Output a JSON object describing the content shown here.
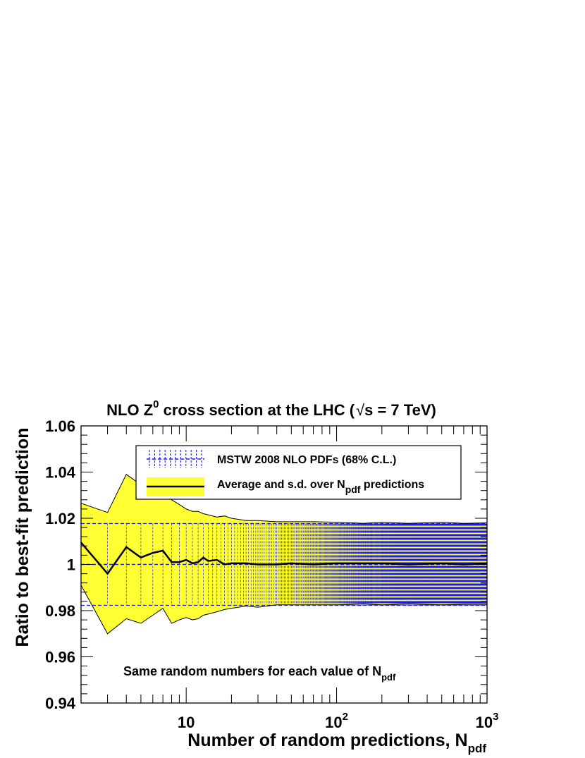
{
  "chart_data": {
    "type": "line",
    "title": {
      "part1": "NLO Z",
      "sup": "0",
      "part2": " cross section at the LHC (",
      "sqrt_var": "s",
      "part3": " = 7 TeV)"
    },
    "xlabel": {
      "main": "Number of random predictions, N",
      "sub": "pdf"
    },
    "ylabel": "Ratio to best-fit prediction",
    "x_scale": "log",
    "xlim": [
      2,
      1000
    ],
    "ylim": [
      0.94,
      1.06
    ],
    "x_tick_labels": [
      {
        "x": 10,
        "base": "10",
        "exp": ""
      },
      {
        "x": 100,
        "base": "10",
        "exp": "2"
      },
      {
        "x": 1000,
        "base": "10",
        "exp": "3"
      }
    ],
    "y_tick_labels": [
      {
        "y": 0.94,
        "label": "0.94"
      },
      {
        "y": 0.96,
        "label": "0.96"
      },
      {
        "y": 0.98,
        "label": "0.98"
      },
      {
        "y": 1.0,
        "label": "1"
      },
      {
        "y": 1.02,
        "label": "1.02"
      },
      {
        "y": 1.04,
        "label": "1.04"
      },
      {
        "y": 1.06,
        "label": "1.06"
      }
    ],
    "grid": false,
    "legend": {
      "placement": "top-center",
      "entries": [
        {
          "text": "MSTW 2008 NLO PDFs (68% C.L.)",
          "sub": "",
          "text2": "",
          "style": "blue-dashed-errorbars"
        },
        {
          "text": "Average and s.d. over N",
          "sub": "pdf",
          "text2": " predictions",
          "style": "yellow-band-black-line"
        }
      ]
    },
    "annotation": {
      "text": "Same random numbers for each value of N",
      "sub": "pdf"
    },
    "reference_band": {
      "name": "MSTW 2008 NLO PDFs (68% C.L.)",
      "lower": 0.9823,
      "upper": 1.0177,
      "center": 1.0
    },
    "series": [
      {
        "name": "Average and s.d. over Npdf predictions",
        "x": [
          2,
          3,
          4,
          5,
          6,
          7,
          8,
          9,
          10,
          11,
          12,
          13,
          14,
          16,
          18,
          20,
          25,
          30,
          40,
          50,
          70,
          100,
          150,
          200,
          300,
          500,
          700,
          1000
        ],
        "mean": [
          1.0095,
          0.996,
          1.0075,
          1.003,
          1.005,
          1.006,
          1.001,
          1.001,
          1.002,
          1.0005,
          1.001,
          1.003,
          1.0015,
          1.002,
          1.0,
          1.0005,
          1.0005,
          1.0,
          1.0,
          1.0005,
          1.0,
          1.0005,
          1.0005,
          1.0005,
          1.0,
          1.0005,
          1.0,
          1.0005
        ],
        "lower": [
          0.991,
          0.97,
          0.9765,
          0.9745,
          0.978,
          0.981,
          0.9745,
          0.976,
          0.977,
          0.976,
          0.9765,
          0.978,
          0.9785,
          0.9795,
          0.9805,
          0.981,
          0.982,
          0.9815,
          0.9825,
          0.9825,
          0.9825,
          0.9825,
          0.983,
          0.9825,
          0.983,
          0.9825,
          0.9828,
          0.9828
        ],
        "upper": [
          1.0265,
          1.0225,
          1.039,
          1.0345,
          1.034,
          1.031,
          1.028,
          1.026,
          1.024,
          1.023,
          1.023,
          1.022,
          1.0215,
          1.0205,
          1.021,
          1.02,
          1.019,
          1.019,
          1.0185,
          1.0185,
          1.0185,
          1.0183,
          1.0178,
          1.0183,
          1.0178,
          1.0183,
          1.0178,
          1.018
        ]
      }
    ],
    "colors": {
      "band_fill": "#ffff33",
      "line": "#000000",
      "reference": "#1a1aff"
    }
  }
}
